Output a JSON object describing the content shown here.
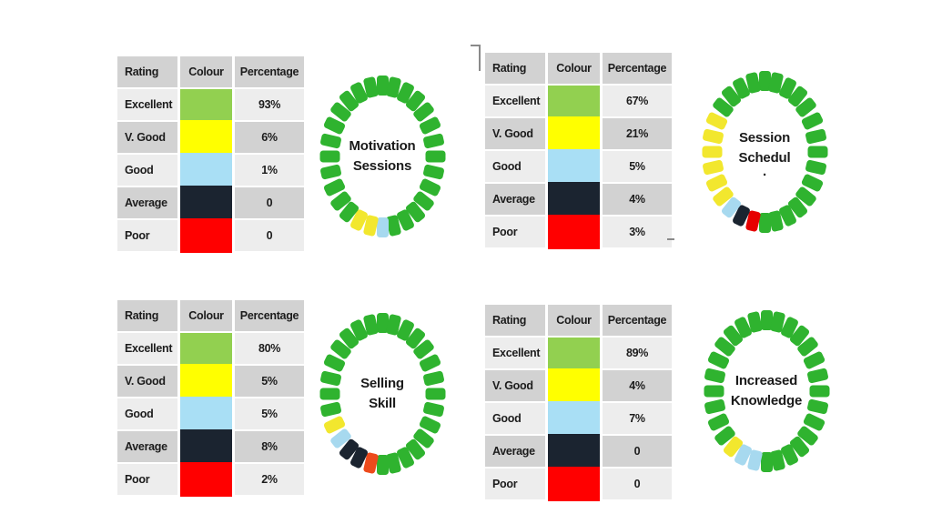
{
  "canvas": {
    "background": "#FFFFFF"
  },
  "table_headers": [
    "Rating",
    "Colour",
    "Percentage"
  ],
  "rating_labels": [
    "Excellent",
    "V. Good",
    "Good",
    "Average",
    "Poor"
  ],
  "swatch_colors": [
    "#92D050",
    "#FFFF00",
    "#A9DFF5",
    "#1B2430",
    "#FF0000"
  ],
  "donut_palette": {
    "green": "#2FB32F",
    "yellow": "#F2E72E",
    "blue": "#A7D9EF",
    "navy": "#1B2430",
    "red": "#E60000",
    "orange": "#ED4A1C"
  },
  "chart_data": [
    {
      "type": "donut",
      "title_lines": [
        "Motivation",
        "Sessions"
      ],
      "categories": [
        "Excellent",
        "V. Good",
        "Good",
        "Average",
        "Poor"
      ],
      "values": [
        93,
        6,
        1,
        0,
        0
      ],
      "values_display": [
        "93%",
        "6%",
        "1%",
        "0",
        "0"
      ],
      "segments_clockwise_from_top": [
        "green",
        "green",
        "green",
        "green",
        "green",
        "green",
        "green",
        "green",
        "green",
        "green",
        "green",
        "green",
        "green",
        "green",
        "blue",
        "yellow",
        "yellow",
        "green",
        "green",
        "green",
        "green",
        "green",
        "green",
        "green",
        "green",
        "green",
        "green",
        "green"
      ]
    },
    {
      "type": "donut",
      "title_lines": [
        "Session",
        "Schedul",
        "."
      ],
      "categories": [
        "Excellent",
        "V. Good",
        "Good",
        "Average",
        "Poor"
      ],
      "values": [
        67,
        21,
        5,
        4,
        3
      ],
      "values_display": [
        "67%",
        "21%",
        "5%",
        "4%",
        "3%"
      ],
      "segments_clockwise_from_top": [
        "green",
        "green",
        "green",
        "green",
        "green",
        "green",
        "green",
        "green",
        "green",
        "green",
        "green",
        "green",
        "green",
        "green",
        "green",
        "red",
        "navy",
        "blue",
        "yellow",
        "yellow",
        "yellow",
        "yellow",
        "yellow",
        "yellow",
        "green",
        "green",
        "green",
        "green"
      ]
    },
    {
      "type": "donut",
      "title_lines": [
        "Selling",
        "Skill"
      ],
      "categories": [
        "Excellent",
        "V. Good",
        "Good",
        "Average",
        "Poor"
      ],
      "values": [
        80,
        5,
        5,
        8,
        2
      ],
      "values_display": [
        "80%",
        "5%",
        "5%",
        "8%",
        "2%"
      ],
      "segments_clockwise_from_top": [
        "green",
        "green",
        "green",
        "green",
        "green",
        "green",
        "green",
        "green",
        "green",
        "green",
        "green",
        "green",
        "green",
        "green",
        "green",
        "orange",
        "navy",
        "navy",
        "blue",
        "yellow",
        "green",
        "green",
        "green",
        "green",
        "green",
        "green",
        "green",
        "green"
      ]
    },
    {
      "type": "donut",
      "title_lines": [
        "Increased",
        "Knowledge"
      ],
      "categories": [
        "Excellent",
        "V. Good",
        "Good",
        "Average",
        "Poor"
      ],
      "values": [
        89,
        4,
        7,
        0,
        0
      ],
      "values_display": [
        "89%",
        "4%",
        "7%",
        "0",
        "0"
      ],
      "segments_clockwise_from_top": [
        "green",
        "green",
        "green",
        "green",
        "green",
        "green",
        "green",
        "green",
        "green",
        "green",
        "green",
        "green",
        "green",
        "green",
        "green",
        "blue",
        "blue",
        "yellow",
        "green",
        "green",
        "green",
        "green",
        "green",
        "green",
        "green",
        "green",
        "green",
        "green"
      ]
    }
  ]
}
